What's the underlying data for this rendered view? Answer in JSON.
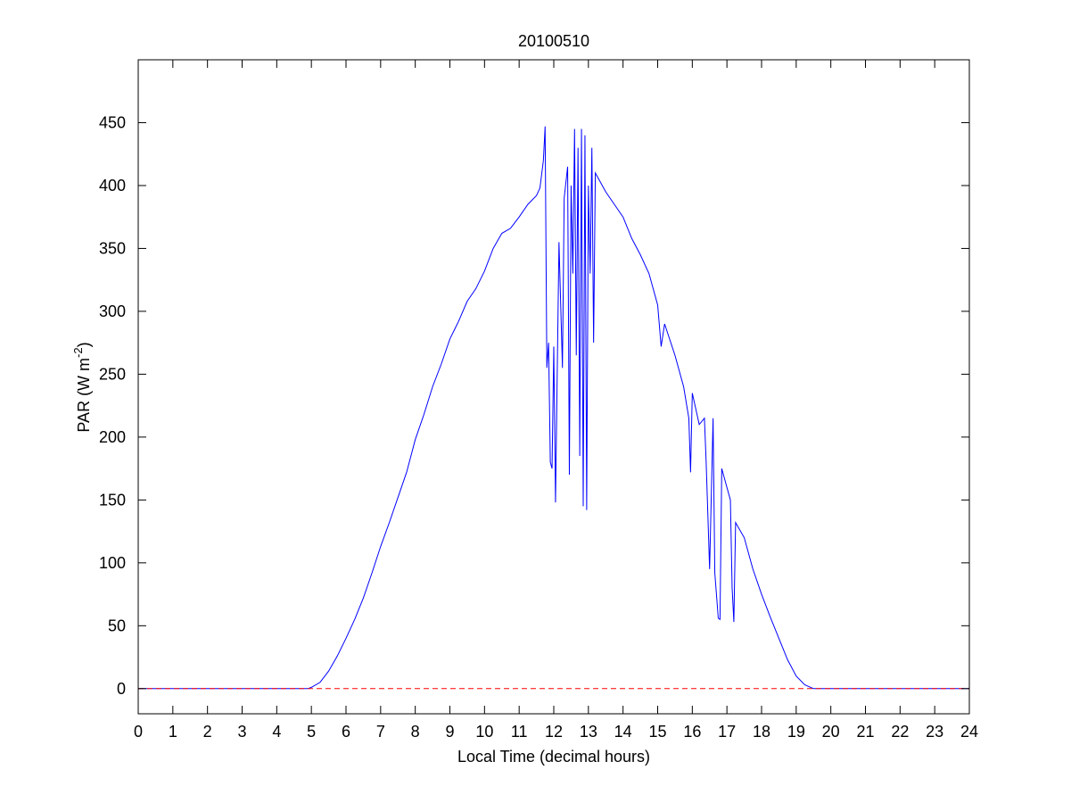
{
  "chart_data": {
    "type": "line",
    "title": "20100510",
    "xlabel": "Local Time (decimal hours)",
    "ylabel": [
      "PAR (W m",
      "-2",
      ")"
    ],
    "xlim": [
      0,
      24
    ],
    "ylim": [
      -20,
      500
    ],
    "xticks": [
      0,
      1,
      2,
      3,
      4,
      5,
      6,
      7,
      8,
      9,
      10,
      11,
      12,
      13,
      14,
      15,
      16,
      17,
      18,
      19,
      20,
      21,
      22,
      23,
      24
    ],
    "yticks": [
      0,
      50,
      100,
      150,
      200,
      250,
      300,
      350,
      400,
      450
    ],
    "grid": false,
    "series": [
      {
        "color": "#0000ff",
        "style": "solid",
        "x": [
          0,
          4.9,
          5.0,
          5.25,
          5.5,
          5.75,
          6,
          6.25,
          6.5,
          6.75,
          7,
          7.25,
          7.5,
          7.75,
          8,
          8.25,
          8.5,
          8.75,
          9,
          9.25,
          9.5,
          9.75,
          10,
          10.25,
          10.5,
          10.75,
          11,
          11.25,
          11.5,
          11.6,
          11.7,
          11.75,
          11.8,
          11.85,
          11.9,
          11.95,
          12.0,
          12.05,
          12.15,
          12.25,
          12.3,
          12.4,
          12.45,
          12.5,
          12.55,
          12.6,
          12.65,
          12.7,
          12.75,
          12.8,
          12.85,
          12.9,
          12.95,
          13.0,
          13.05,
          13.1,
          13.15,
          13.2,
          13.3,
          13.5,
          13.75,
          14,
          14.25,
          14.5,
          14.75,
          15,
          15.1,
          15.2,
          15.5,
          15.75,
          15.9,
          15.95,
          16.0,
          16.2,
          16.35,
          16.4,
          16.5,
          16.6,
          16.65,
          16.75,
          16.8,
          16.85,
          16.95,
          17.1,
          17.15,
          17.2,
          17.25,
          17.5,
          17.75,
          18,
          18.25,
          18.5,
          18.75,
          19,
          19.25,
          19.5,
          24
        ],
        "values": [
          0,
          0,
          1,
          5,
          14,
          26,
          40,
          55,
          72,
          92,
          113,
          132,
          152,
          172,
          198,
          218,
          240,
          258,
          278,
          292,
          308,
          318,
          332,
          350,
          362,
          366,
          375,
          385,
          392,
          398,
          420,
          447,
          255,
          275,
          180,
          175,
          272,
          148,
          355,
          255,
          390,
          415,
          170,
          400,
          330,
          445,
          265,
          430,
          185,
          445,
          145,
          440,
          142,
          400,
          330,
          430,
          275,
          410,
          405,
          395,
          385,
          375,
          358,
          345,
          330,
          305,
          272,
          290,
          265,
          240,
          215,
          172,
          235,
          210,
          215,
          180,
          95,
          215,
          92,
          56,
          55,
          175,
          165,
          150,
          80,
          53,
          132,
          120,
          95,
          75,
          57,
          40,
          23,
          10,
          3,
          0,
          0
        ]
      },
      {
        "color": "#ff0000",
        "style": "dashed",
        "x": [
          0,
          24
        ],
        "values": [
          0,
          0
        ]
      }
    ]
  }
}
